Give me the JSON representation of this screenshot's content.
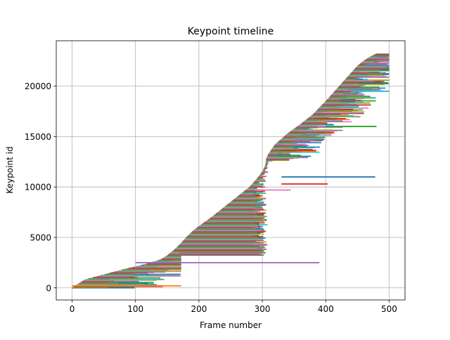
{
  "chart_data": {
    "type": "line",
    "title": "Keypoint timeline",
    "xlabel": "Frame number",
    "ylabel": "Keypoint id",
    "xlim": [
      -25,
      525
    ],
    "ylim": [
      -1200,
      24500
    ],
    "xticks": [
      0,
      100,
      200,
      300,
      400,
      500
    ],
    "yticks": [
      0,
      5000,
      10000,
      15000,
      20000
    ],
    "grid": true,
    "colors": [
      "#1f77b4",
      "#ff7f0e",
      "#2ca02c",
      "#d62728",
      "#9467bd",
      "#8c564b",
      "#e377c2",
      "#7f7f7f",
      "#bcbd22",
      "#17becf"
    ],
    "envelope": {
      "description_of_values": "upper-left boundary: first frame at which each keypoint id appears",
      "x": [
        0,
        20,
        50,
        80,
        100,
        120,
        140,
        150,
        160,
        170,
        180,
        190,
        200,
        220,
        240,
        260,
        280,
        290,
        300,
        305,
        306,
        310,
        320,
        340,
        360,
        380,
        400,
        410,
        420,
        430,
        440,
        450,
        460,
        470,
        480
      ],
      "y": [
        0,
        800,
        1300,
        1800,
        2100,
        2400,
        2800,
        3200,
        3700,
        4300,
        5000,
        5600,
        6100,
        7000,
        8000,
        9000,
        10000,
        10700,
        11500,
        12200,
        12800,
        13300,
        14200,
        15300,
        16200,
        17200,
        18500,
        19200,
        19900,
        20600,
        21300,
        22000,
        22500,
        22900,
        23200
      ]
    },
    "notable_tracks": [
      {
        "id": 200,
        "start": 0,
        "end": 172
      },
      {
        "id": 2500,
        "start": 100,
        "end": 390
      },
      {
        "id": 3500,
        "start": 170,
        "end": 305
      },
      {
        "id": 11000,
        "start": 330,
        "end": 478
      },
      {
        "id": 10300,
        "start": 330,
        "end": 403
      },
      {
        "id": 9700,
        "start": 300,
        "end": 345
      },
      {
        "id": 19500,
        "start": 440,
        "end": 500
      },
      {
        "id": 16000,
        "start": 400,
        "end": 480
      }
    ]
  }
}
